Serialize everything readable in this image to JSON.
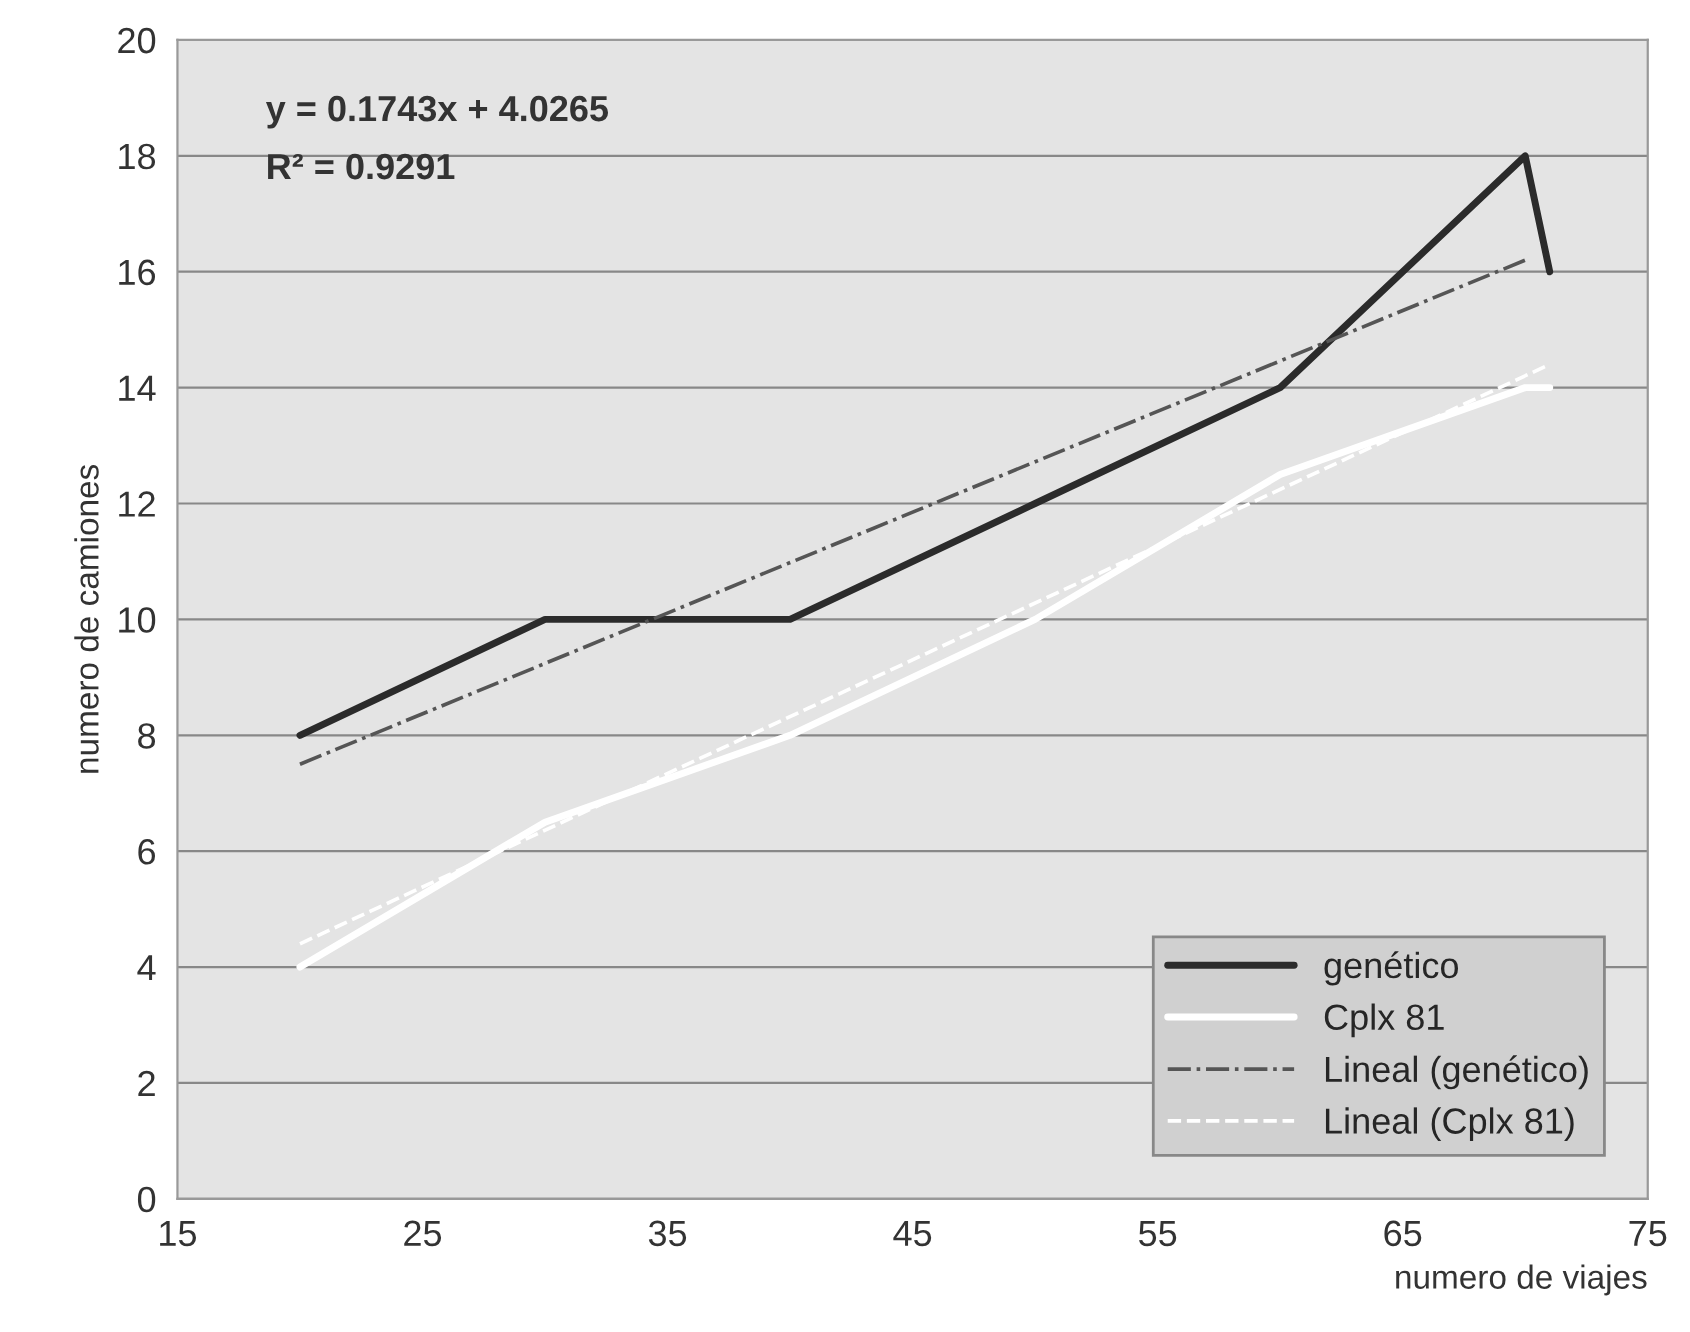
{
  "chart_data": {
    "type": "line",
    "xlabel": "numero de viajes",
    "ylabel": "numero de camiones",
    "xlim": [
      15,
      75
    ],
    "xticks": [
      15,
      25,
      35,
      45,
      55,
      65,
      75
    ],
    "ylim": [
      0,
      20
    ],
    "yticks": [
      0,
      2,
      4,
      6,
      8,
      10,
      12,
      14,
      16,
      18,
      20
    ],
    "grid": "y",
    "legend": "bottom right",
    "marker": "none",
    "annotations": [
      "y = 0.1743x + 4.0265",
      "R² = 0.9291"
    ],
    "series": [
      {
        "name": "genético",
        "color": "#2b2b2b",
        "line_style": "solid",
        "x": [
          20,
          30,
          40,
          50,
          60,
          70,
          71
        ],
        "values": [
          8,
          10,
          10,
          12,
          14,
          18,
          16
        ]
      },
      {
        "name": "Cplx 81",
        "color": "#ffffff",
        "line_style": "solid",
        "x": [
          20,
          30,
          40,
          50,
          60,
          70,
          71
        ],
        "values": [
          4,
          6.5,
          8,
          10,
          12.5,
          14,
          14
        ]
      },
      {
        "name": "Lineal (genético)",
        "color": "#555555",
        "line_style": "dashdot",
        "x": [
          20,
          70
        ],
        "values": [
          7.5,
          16.2
        ]
      },
      {
        "name": "Lineal (Cplx 81)",
        "color": "#ffffff",
        "line_style": "dashed",
        "x": [
          20,
          71
        ],
        "values": [
          4.4,
          14.4
        ]
      }
    ]
  }
}
